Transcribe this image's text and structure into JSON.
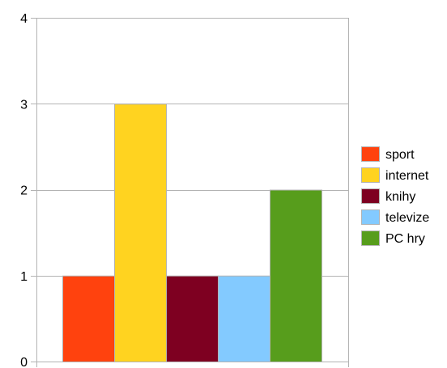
{
  "chart_data": {
    "type": "bar",
    "title": "",
    "xlabel": "",
    "ylabel": "",
    "ylim": [
      0,
      4
    ],
    "yticks": [
      0,
      1,
      2,
      3,
      4
    ],
    "grid": true,
    "legend_position": "right",
    "series": [
      {
        "name": "sport",
        "value": 1,
        "color": "#ff420e"
      },
      {
        "name": "internet",
        "value": 3,
        "color": "#ffd320"
      },
      {
        "name": "knihy",
        "value": 1,
        "color": "#7e0021"
      },
      {
        "name": "televize",
        "value": 1,
        "color": "#83caff"
      },
      {
        "name": "PC hry",
        "value": 2,
        "color": "#579d1c"
      }
    ]
  }
}
